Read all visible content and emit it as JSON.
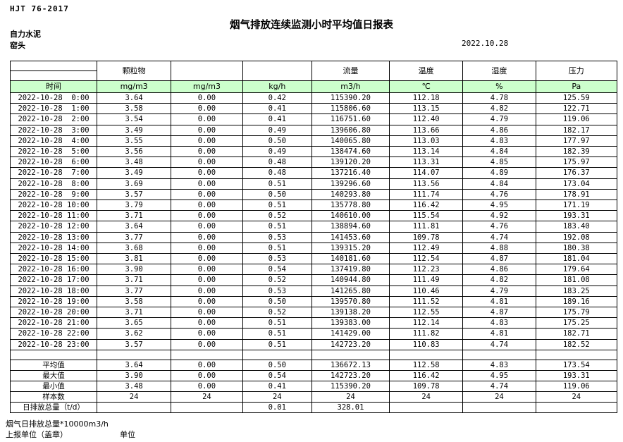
{
  "page": {
    "doc_code": "HJT 76-2017",
    "title": "烟气排放连续监测小时平均值日报表",
    "company": "自力水泥",
    "location": "窑头",
    "date": "2022.10.28"
  },
  "colors": {
    "unit_row_bg": "#ccffcc",
    "border": "#000000"
  },
  "table": {
    "time_label": "时间",
    "group_headers": {
      "particulate": "颗粒物",
      "col3": "",
      "col4": "",
      "flow": "流量",
      "temperature": "温度",
      "humidity": "湿度",
      "pressure": "压力"
    },
    "units": [
      "mg/m3",
      "mg/m3",
      "kg/h",
      "m3/h",
      "℃",
      "%",
      "Pa"
    ],
    "rows": [
      {
        "time": "2022-10-28  0:00",
        "values": [
          "3.64",
          "0.00",
          "0.42",
          "115390.20",
          "112.18",
          "4.78",
          "125.59"
        ]
      },
      {
        "time": "2022-10-28  1:00",
        "values": [
          "3.58",
          "0.00",
          "0.41",
          "115806.60",
          "113.15",
          "4.82",
          "122.71"
        ]
      },
      {
        "time": "2022-10-28  2:00",
        "values": [
          "3.54",
          "0.00",
          "0.41",
          "116751.60",
          "112.40",
          "4.79",
          "119.06"
        ]
      },
      {
        "time": "2022-10-28  3:00",
        "values": [
          "3.49",
          "0.00",
          "0.49",
          "139606.80",
          "113.66",
          "4.86",
          "182.17"
        ]
      },
      {
        "time": "2022-10-28  4:00",
        "values": [
          "3.55",
          "0.00",
          "0.50",
          "140065.80",
          "113.03",
          "4.83",
          "177.97"
        ]
      },
      {
        "time": "2022-10-28  5:00",
        "values": [
          "3.56",
          "0.00",
          "0.49",
          "138474.60",
          "113.14",
          "4.84",
          "182.39"
        ]
      },
      {
        "time": "2022-10-28  6:00",
        "values": [
          "3.48",
          "0.00",
          "0.48",
          "139120.20",
          "113.31",
          "4.85",
          "175.97"
        ]
      },
      {
        "time": "2022-10-28  7:00",
        "values": [
          "3.49",
          "0.00",
          "0.48",
          "137216.40",
          "114.07",
          "4.89",
          "176.37"
        ]
      },
      {
        "time": "2022-10-28  8:00",
        "values": [
          "3.69",
          "0.00",
          "0.51",
          "139296.60",
          "113.56",
          "4.84",
          "173.04"
        ]
      },
      {
        "time": "2022-10-28  9:00",
        "values": [
          "3.57",
          "0.00",
          "0.50",
          "140293.80",
          "111.74",
          "4.76",
          "178.91"
        ]
      },
      {
        "time": "2022-10-28 10:00",
        "values": [
          "3.79",
          "0.00",
          "0.51",
          "135778.80",
          "116.42",
          "4.95",
          "171.19"
        ]
      },
      {
        "time": "2022-10-28 11:00",
        "values": [
          "3.71",
          "0.00",
          "0.52",
          "140610.00",
          "115.54",
          "4.92",
          "193.31"
        ]
      },
      {
        "time": "2022-10-28 12:00",
        "values": [
          "3.64",
          "0.00",
          "0.51",
          "138894.60",
          "111.81",
          "4.76",
          "183.40"
        ]
      },
      {
        "time": "2022-10-28 13:00",
        "values": [
          "3.77",
          "0.00",
          "0.53",
          "141453.60",
          "109.78",
          "4.74",
          "192.08"
        ]
      },
      {
        "time": "2022-10-28 14:00",
        "values": [
          "3.68",
          "0.00",
          "0.51",
          "139315.20",
          "112.49",
          "4.88",
          "180.38"
        ]
      },
      {
        "time": "2022-10-28 15:00",
        "values": [
          "3.81",
          "0.00",
          "0.53",
          "140181.60",
          "112.54",
          "4.87",
          "181.04"
        ]
      },
      {
        "time": "2022-10-28 16:00",
        "values": [
          "3.90",
          "0.00",
          "0.54",
          "137419.80",
          "112.23",
          "4.86",
          "179.64"
        ]
      },
      {
        "time": "2022-10-28 17:00",
        "values": [
          "3.71",
          "0.00",
          "0.52",
          "140944.80",
          "111.49",
          "4.82",
          "181.08"
        ]
      },
      {
        "time": "2022-10-28 18:00",
        "values": [
          "3.77",
          "0.00",
          "0.53",
          "141265.80",
          "110.46",
          "4.79",
          "183.25"
        ]
      },
      {
        "time": "2022-10-28 19:00",
        "values": [
          "3.58",
          "0.00",
          "0.50",
          "139570.80",
          "111.52",
          "4.81",
          "189.16"
        ]
      },
      {
        "time": "2022-10-28 20:00",
        "values": [
          "3.71",
          "0.00",
          "0.52",
          "139138.20",
          "112.55",
          "4.87",
          "175.79"
        ]
      },
      {
        "time": "2022-10-28 21:00",
        "values": [
          "3.65",
          "0.00",
          "0.51",
          "139383.00",
          "112.14",
          "4.83",
          "175.25"
        ]
      },
      {
        "time": "2022-10-28 22:00",
        "values": [
          "3.62",
          "0.00",
          "0.51",
          "141429.00",
          "111.82",
          "4.81",
          "182.71"
        ]
      },
      {
        "time": "2022-10-28 23:00",
        "values": [
          "3.57",
          "0.00",
          "0.51",
          "142723.20",
          "110.83",
          "4.74",
          "182.52"
        ]
      }
    ],
    "summary": [
      {
        "label": "平均值",
        "values": [
          "3.64",
          "0.00",
          "0.50",
          "136672.13",
          "112.58",
          "4.83",
          "173.54"
        ]
      },
      {
        "label": "最大值",
        "values": [
          "3.90",
          "0.00",
          "0.54",
          "142723.20",
          "116.42",
          "4.95",
          "193.31"
        ]
      },
      {
        "label": "最小值",
        "values": [
          "3.48",
          "0.00",
          "0.41",
          "115390.20",
          "109.78",
          "4.74",
          "119.06"
        ]
      },
      {
        "label": "样本数",
        "values": [
          "24",
          "24",
          "24",
          "24",
          "24",
          "24",
          "24"
        ]
      },
      {
        "label": "日排放总量（t/d）",
        "values": [
          "",
          "",
          "0.01",
          "328.01",
          "",
          "",
          ""
        ]
      }
    ]
  },
  "footer": {
    "note": "烟气日排放总量*10000m3/h",
    "report_unit_label": "上报单位（盖章）",
    "unit_label": "单位"
  }
}
